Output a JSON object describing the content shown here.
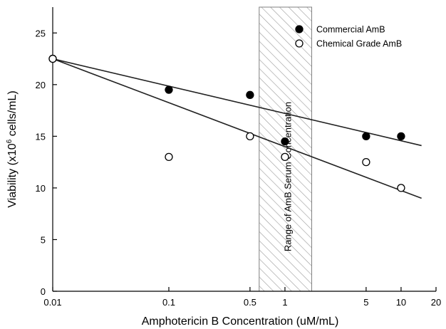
{
  "chart_data": {
    "type": "scatter",
    "xlabel": "Amphotericin B Concentration (uM/mL)",
    "ylabel": {
      "prefix": "Viability (x10",
      "superscript": "6",
      "suffix": " cells/mL)"
    },
    "x_scale": "log",
    "xlim": [
      0.01,
      20
    ],
    "ylim": [
      0,
      27.5
    ],
    "x_ticks": [
      {
        "value": 0.01,
        "label": "0.01"
      },
      {
        "value": 0.1,
        "label": "0.1"
      },
      {
        "value": 0.5,
        "label": "0.5"
      },
      {
        "value": 1,
        "label": "1"
      },
      {
        "value": 5,
        "label": "5"
      },
      {
        "value": 10,
        "label": "10"
      },
      {
        "value": 20,
        "label": "20"
      }
    ],
    "y_ticks": [
      {
        "value": 0,
        "label": "0"
      },
      {
        "value": 5,
        "label": "5"
      },
      {
        "value": 10,
        "label": "10"
      },
      {
        "value": 15,
        "label": "15"
      },
      {
        "value": 20,
        "label": "20"
      },
      {
        "value": 25,
        "label": "25"
      }
    ],
    "series": [
      {
        "name": "Commercial AmB",
        "marker": "filled-circle",
        "color": "#000000",
        "points": [
          {
            "x": 0.01,
            "y": 22.5
          },
          {
            "x": 0.1,
            "y": 19.5
          },
          {
            "x": 0.5,
            "y": 19.0
          },
          {
            "x": 1,
            "y": 14.5
          },
          {
            "x": 5,
            "y": 15.0
          },
          {
            "x": 10,
            "y": 15.0
          }
        ],
        "trendline": {
          "from": {
            "x": 0.01,
            "y": 22.5
          },
          "to": {
            "x": 15,
            "y": 14.1
          }
        }
      },
      {
        "name": "Chemical Grade AmB",
        "marker": "open-circle",
        "color": "#000000",
        "points": [
          {
            "x": 0.01,
            "y": 22.5
          },
          {
            "x": 0.1,
            "y": 13.0
          },
          {
            "x": 0.5,
            "y": 15.0
          },
          {
            "x": 1,
            "y": 13.0
          },
          {
            "x": 5,
            "y": 12.5
          },
          {
            "x": 10,
            "y": 10.0
          }
        ],
        "trendline": {
          "from": {
            "x": 0.01,
            "y": 22.5
          },
          "to": {
            "x": 15,
            "y": 9.0
          }
        }
      }
    ],
    "shaded_band": {
      "x_from": 0.6,
      "x_to": 1.7,
      "label": "Range of  AmB Serum Concentration",
      "pattern": "diagonal-hatch"
    },
    "legend_position": "top-right",
    "grid": false
  }
}
